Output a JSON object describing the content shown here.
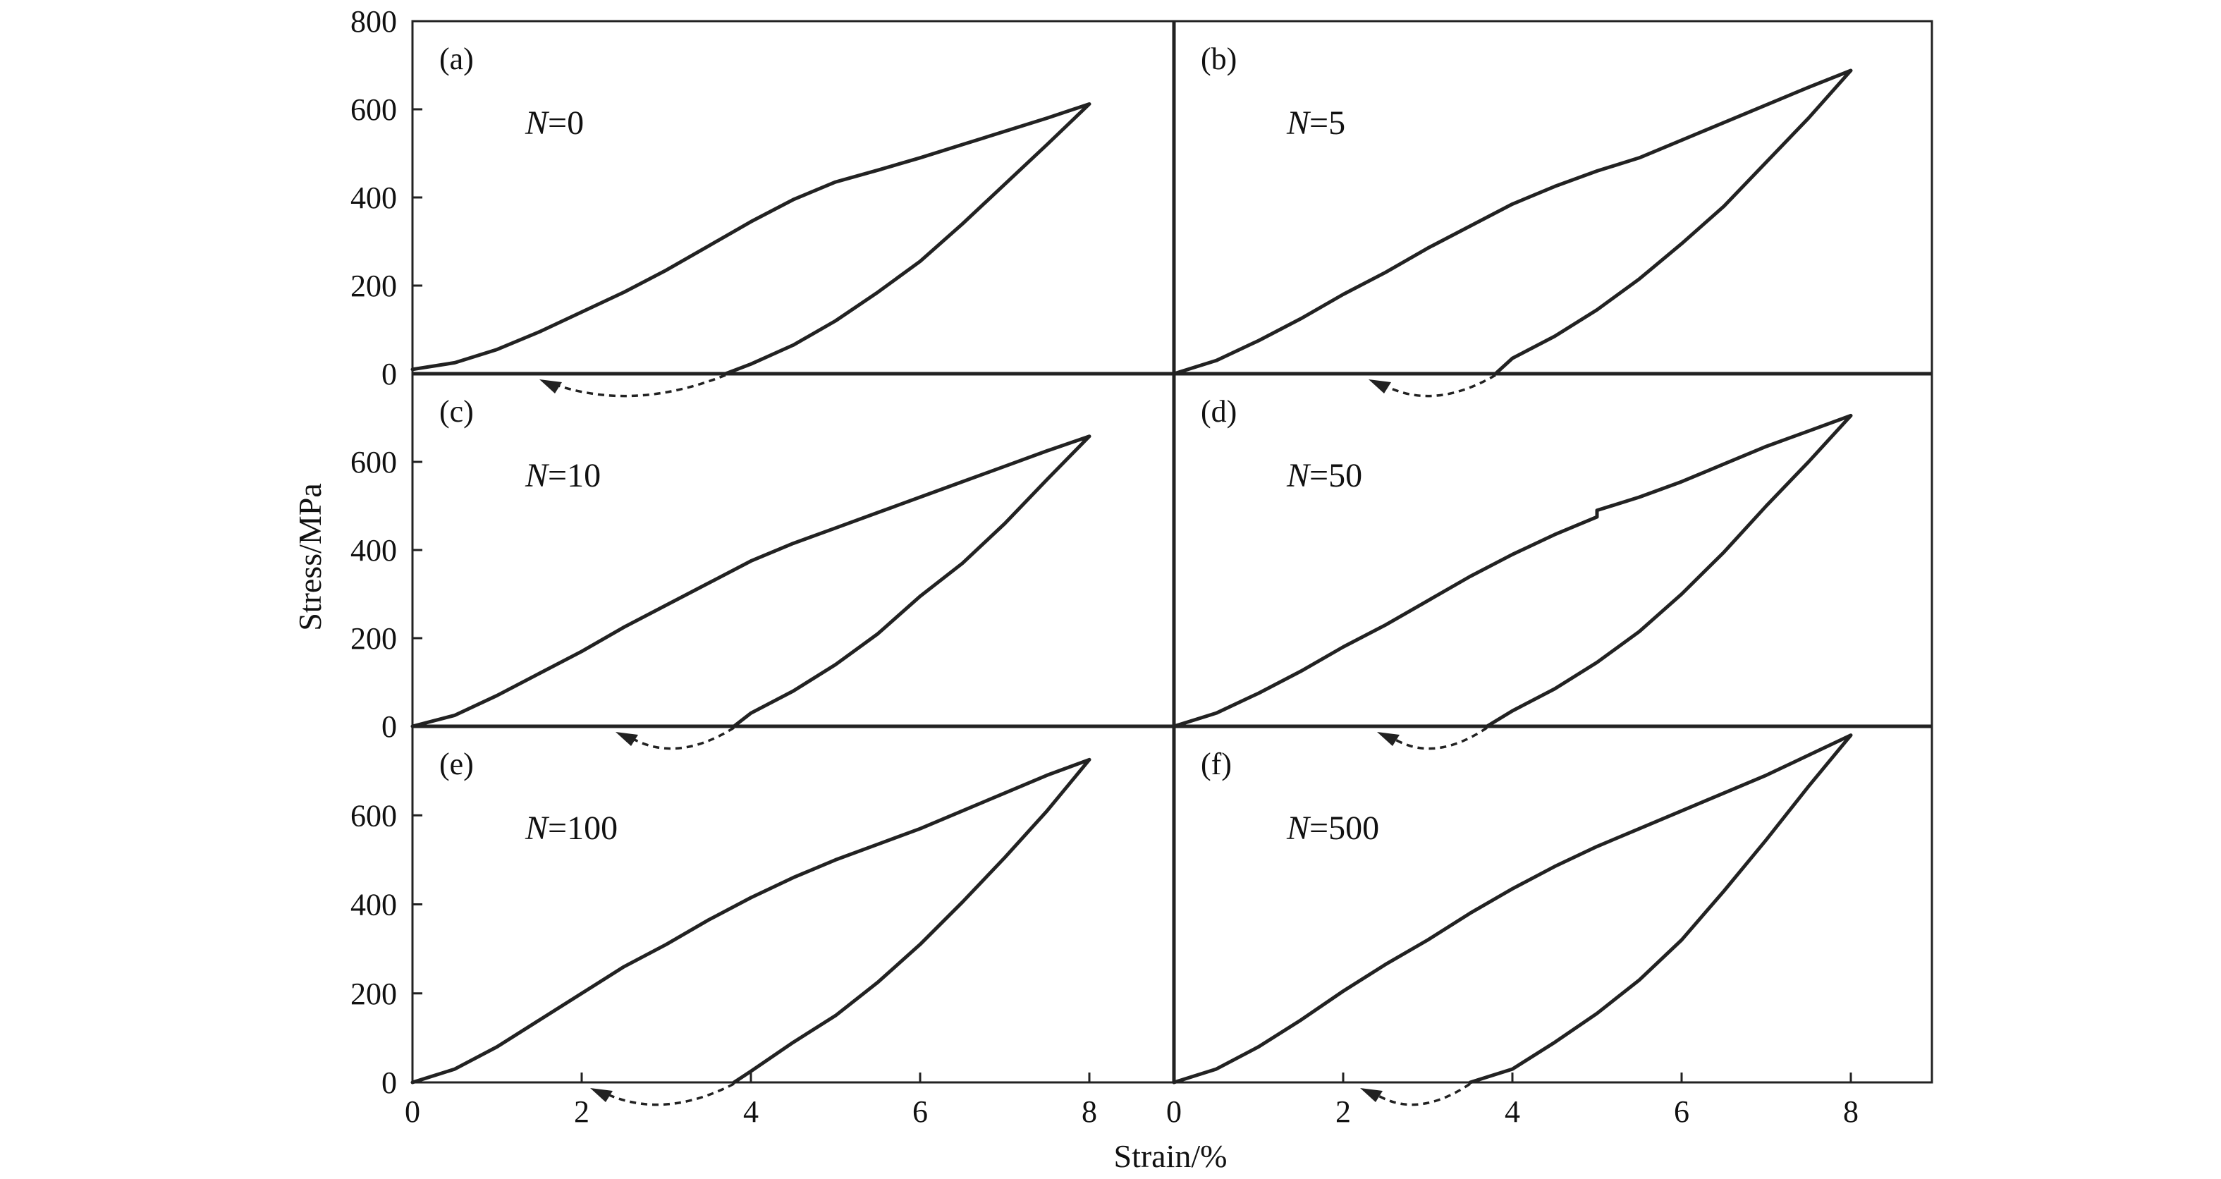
{
  "chart_data": {
    "type": "line",
    "xlabel": "Strain/%",
    "ylabel": "Stress/MPa",
    "x_ticks": [
      "0",
      "2",
      "4",
      "6",
      "8"
    ],
    "y_ticks_top": [
      "0",
      "200",
      "400",
      "600",
      "800"
    ],
    "y_ticks": [
      "0",
      "200",
      "400",
      "600"
    ],
    "xlim": [
      0,
      9
    ],
    "ylim": [
      0,
      800
    ],
    "panels": [
      {
        "label": "(a)",
        "n_prefix": "N",
        "n_value": "=0",
        "peak_stress": 612,
        "residual_strain": 3.7,
        "loading": [
          [
            0,
            10
          ],
          [
            0.5,
            25
          ],
          [
            1,
            55
          ],
          [
            1.5,
            95
          ],
          [
            2,
            140
          ],
          [
            2.5,
            185
          ],
          [
            3,
            235
          ],
          [
            3.5,
            290
          ],
          [
            4,
            345
          ],
          [
            4.5,
            395
          ],
          [
            5,
            435
          ],
          [
            5.5,
            462
          ],
          [
            6,
            490
          ],
          [
            6.5,
            520
          ],
          [
            7,
            550
          ],
          [
            7.5,
            580
          ],
          [
            8,
            612
          ]
        ],
        "unloading": [
          [
            8,
            612
          ],
          [
            7.5,
            520
          ],
          [
            7,
            430
          ],
          [
            6.5,
            340
          ],
          [
            6,
            255
          ],
          [
            5.5,
            185
          ],
          [
            5,
            120
          ],
          [
            4.5,
            65
          ],
          [
            4,
            22
          ],
          [
            3.7,
            0
          ]
        ],
        "arrow_end_strain": 1.5
      },
      {
        "label": "(b)",
        "n_prefix": "N",
        "n_value": "=5",
        "peak_stress": 688,
        "residual_strain": 3.8,
        "loading": [
          [
            0,
            0
          ],
          [
            0.5,
            30
          ],
          [
            1,
            75
          ],
          [
            1.5,
            125
          ],
          [
            2,
            180
          ],
          [
            2.5,
            230
          ],
          [
            3,
            285
          ],
          [
            3.5,
            335
          ],
          [
            4,
            385
          ],
          [
            4.5,
            425
          ],
          [
            5,
            460
          ],
          [
            5.5,
            490
          ],
          [
            6,
            530
          ],
          [
            6.5,
            570
          ],
          [
            7,
            610
          ],
          [
            7.5,
            650
          ],
          [
            8,
            688
          ]
        ],
        "unloading": [
          [
            8,
            688
          ],
          [
            7.5,
            580
          ],
          [
            7,
            480
          ],
          [
            6.5,
            380
          ],
          [
            6,
            295
          ],
          [
            5.5,
            215
          ],
          [
            5,
            145
          ],
          [
            4.5,
            85
          ],
          [
            4,
            35
          ],
          [
            3.8,
            0
          ]
        ],
        "arrow_end_strain": 2.3
      },
      {
        "label": "(c)",
        "n_prefix": "N",
        "n_value": "=10",
        "peak_stress": 658,
        "residual_strain": 3.8,
        "loading": [
          [
            0,
            0
          ],
          [
            0.5,
            25
          ],
          [
            1,
            70
          ],
          [
            1.5,
            120
          ],
          [
            2,
            170
          ],
          [
            2.5,
            225
          ],
          [
            3,
            275
          ],
          [
            3.5,
            325
          ],
          [
            4,
            375
          ],
          [
            4.5,
            415
          ],
          [
            5,
            450
          ],
          [
            5.5,
            485
          ],
          [
            6,
            520
          ],
          [
            6.5,
            555
          ],
          [
            7,
            590
          ],
          [
            7.5,
            625
          ],
          [
            8,
            658
          ]
        ],
        "unloading": [
          [
            8,
            658
          ],
          [
            7.5,
            560
          ],
          [
            7,
            460
          ],
          [
            6.5,
            370
          ],
          [
            6,
            295
          ],
          [
            5.5,
            210
          ],
          [
            5,
            140
          ],
          [
            4.5,
            80
          ],
          [
            4,
            30
          ],
          [
            3.8,
            0
          ]
        ],
        "arrow_end_strain": 2.4
      },
      {
        "label": "(d)",
        "n_prefix": "N",
        "n_value": "=50",
        "peak_stress": 705,
        "residual_strain": 3.7,
        "loading": [
          [
            0,
            0
          ],
          [
            0.5,
            30
          ],
          [
            1,
            75
          ],
          [
            1.5,
            125
          ],
          [
            2,
            180
          ],
          [
            2.5,
            230
          ],
          [
            3,
            285
          ],
          [
            3.5,
            340
          ],
          [
            4,
            390
          ],
          [
            4.5,
            435
          ],
          [
            5,
            475
          ],
          [
            5,
            490
          ],
          [
            5.5,
            520
          ],
          [
            6,
            555
          ],
          [
            6.5,
            595
          ],
          [
            7,
            635
          ],
          [
            7.5,
            670
          ],
          [
            8,
            705
          ]
        ],
        "unloading": [
          [
            8,
            705
          ],
          [
            7.5,
            600
          ],
          [
            7,
            500
          ],
          [
            6.5,
            395
          ],
          [
            6,
            300
          ],
          [
            5.5,
            215
          ],
          [
            5,
            145
          ],
          [
            4.5,
            85
          ],
          [
            4,
            35
          ],
          [
            3.7,
            0
          ]
        ],
        "arrow_end_strain": 2.4
      },
      {
        "label": "(e)",
        "n_prefix": "N",
        "n_value": "=100",
        "peak_stress": 725,
        "residual_strain": 3.8,
        "loading": [
          [
            0,
            0
          ],
          [
            0.5,
            30
          ],
          [
            1,
            80
          ],
          [
            1.5,
            140
          ],
          [
            2,
            200
          ],
          [
            2.5,
            260
          ],
          [
            3,
            310
          ],
          [
            3.5,
            365
          ],
          [
            4,
            415
          ],
          [
            4.5,
            460
          ],
          [
            5,
            500
          ],
          [
            5.5,
            535
          ],
          [
            6,
            570
          ],
          [
            6.5,
            610
          ],
          [
            7,
            650
          ],
          [
            7.5,
            690
          ],
          [
            8,
            725
          ]
        ],
        "unloading": [
          [
            8,
            725
          ],
          [
            7.5,
            610
          ],
          [
            7,
            505
          ],
          [
            6.5,
            405
          ],
          [
            6,
            310
          ],
          [
            5.5,
            225
          ],
          [
            5,
            150
          ],
          [
            4.5,
            90
          ],
          [
            4,
            25
          ],
          [
            3.8,
            0
          ]
        ],
        "arrow_end_strain": 2.1
      },
      {
        "label": "(f)",
        "n_prefix": "N",
        "n_value": "=500",
        "peak_stress": 780,
        "residual_strain": 3.5,
        "loading": [
          [
            0,
            0
          ],
          [
            0.5,
            30
          ],
          [
            1,
            80
          ],
          [
            1.5,
            140
          ],
          [
            2,
            205
          ],
          [
            2.5,
            265
          ],
          [
            3,
            320
          ],
          [
            3.5,
            380
          ],
          [
            4,
            435
          ],
          [
            4.5,
            485
          ],
          [
            5,
            530
          ],
          [
            5.5,
            570
          ],
          [
            6,
            610
          ],
          [
            6.5,
            650
          ],
          [
            7,
            690
          ],
          [
            7.5,
            735
          ],
          [
            8,
            780
          ]
        ],
        "unloading": [
          [
            8,
            780
          ],
          [
            7.5,
            665
          ],
          [
            7,
            545
          ],
          [
            6.5,
            430
          ],
          [
            6,
            320
          ],
          [
            5.5,
            230
          ],
          [
            5,
            155
          ],
          [
            4.5,
            90
          ],
          [
            4,
            30
          ],
          [
            3.5,
            0
          ]
        ],
        "arrow_end_strain": 2.2
      }
    ]
  }
}
